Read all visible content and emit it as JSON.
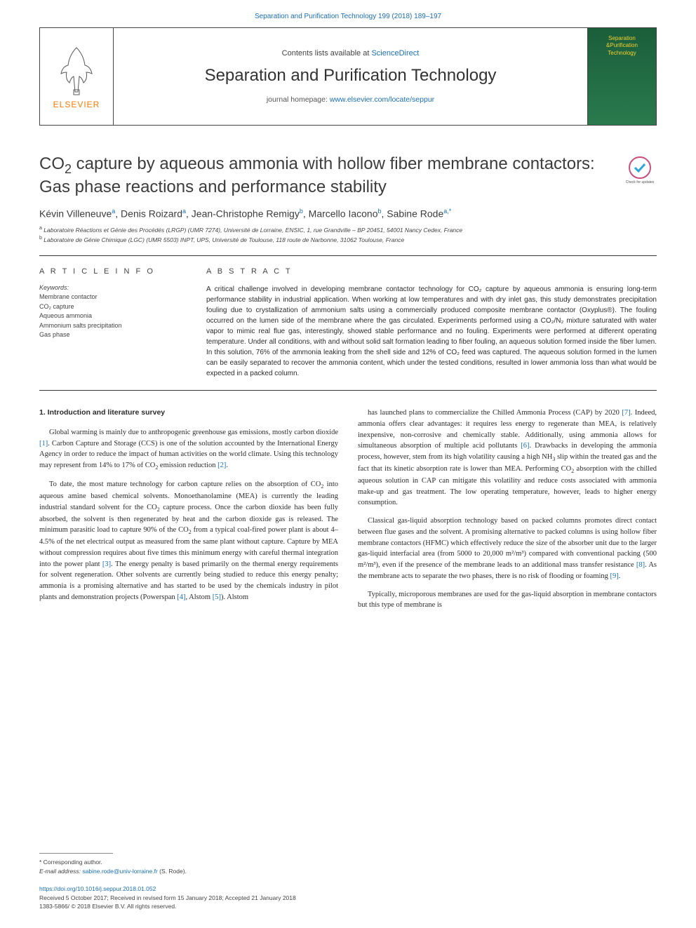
{
  "colors": {
    "link": "#1a6fb5",
    "text": "#2c2c2c",
    "elsevier_orange": "#ff7a00",
    "cover_bg_top": "#1a5e3a",
    "cover_bg_bot": "#2a7a4e",
    "cover_text": "#f5d030",
    "rule": "#333333"
  },
  "toplink": "Separation and Purification Technology 199 (2018) 189–197",
  "header": {
    "elsevier": "ELSEVIER",
    "contents_prefix": "Contents lists available at ",
    "contents_link": "ScienceDirect",
    "journal_name": "Separation and Purification Technology",
    "homepage_prefix": "journal homepage: ",
    "homepage_link": "www.elsevier.com/locate/seppur",
    "cover_lines": [
      "Separation",
      "&Purification",
      "Technology"
    ]
  },
  "article": {
    "title_html": "CO<sub>2</sub> capture by aqueous ammonia with hollow fiber membrane contactors: Gas phase reactions and performance stability",
    "check_label": "Check for updates",
    "authors_html": "Kévin Villeneuve<sup>a</sup>, Denis Roizard<sup>a</sup>, Jean-Christophe Remigy<sup>b</sup>, Marcello Iacono<sup>b</sup>, Sabine Rode<sup>a,*</sup>",
    "affiliations": [
      "a|Laboratoire Réactions et Génie des Procédés (LRGP) (UMR 7274), Université de Lorraine, ENSIC, 1, rue Grandville – BP 20451, 54001 Nancy Cedex, France",
      "b|Laboratoire de Génie Chimique (LGC) (UMR 5503) INPT, UPS, Université de Toulouse, 118 route de Narbonne, 31062 Toulouse, France"
    ]
  },
  "info": {
    "head": "A R T I C L E  I N F O",
    "kw_head": "Keywords:",
    "keywords": [
      "Membrane contactor",
      "CO₂ capture",
      "Aqueous ammonia",
      "Ammonium salts precipitation",
      "Gas phase"
    ]
  },
  "abstract": {
    "head": "A B S T R A C T",
    "text": "A critical challenge involved in developing membrane contactor technology for CO₂ capture by aqueous ammonia is ensuring long-term performance stability in industrial application. When working at low temperatures and with dry inlet gas, this study demonstrates precipitation fouling due to crystallization of ammonium salts using a commercially produced composite membrane contactor (Oxyplus®). The fouling occurred on the lumen side of the membrane where the gas circulated. Experiments performed using a CO₂/N₂ mixture saturated with water vapor to mimic real flue gas, interestingly, showed stable performance and no fouling. Experiments were performed at different operating temperature. Under all conditions, with and without solid salt formation leading to fiber fouling, an aqueous solution formed inside the fiber lumen. In this solution, 76% of the ammonia leaking from the shell side and 12% of CO₂ feed was captured. The aqueous solution formed in the lumen can be easily separated to recover the ammonia content, which under the tested conditions, resulted in lower ammonia loss than what would be expected in a packed column."
  },
  "body": {
    "section_head": "1. Introduction and literature survey",
    "left_paras": [
      "Global warming is mainly due to anthropogenic greenhouse gas emissions, mostly carbon dioxide <span class=\"ref\">[1]</span>. Carbon Capture and Storage (CCS) is one of the solution accounted by the International Energy Agency in order to reduce the impact of human activities on the world climate. Using this technology may represent from 14% to 17% of CO<sub>2</sub> emission reduction <span class=\"ref\">[2]</span>.",
      "To date, the most mature technology for carbon capture relies on the absorption of CO<sub>2</sub> into aqueous amine based chemical solvents. Monoethanolamine (MEA) is currently the leading industrial standard solvent for the CO<sub>2</sub> capture process. Once the carbon dioxide has been fully absorbed, the solvent is then regenerated by heat and the carbon dioxide gas is released. The minimum parasitic load to capture 90% of the CO<sub>2</sub> from a typical coal-fired power plant is about 4–4.5% of the net electrical output as measured from the same plant without capture. Capture by MEA without compression requires about five times this minimum energy with careful thermal integration into the power plant <span class=\"ref\">[3]</span>. The energy penalty is based primarily on the thermal energy requirements for solvent regeneration. Other solvents are currently being studied to reduce this energy penalty; ammonia is a promising alternative and has started to be used by the chemicals industry in pilot plants and demonstration projects (Powerspan <span class=\"ref\">[4]</span>, Alstom <span class=\"ref\">[5]</span>). Alstom"
    ],
    "right_paras": [
      "has launched plans to commercialize the Chilled Ammonia Process (CAP) by 2020 <span class=\"ref\">[7]</span>. Indeed, ammonia offers clear advantages: it requires less energy to regenerate than MEA, is relatively inexpensive, non-corrosive and chemically stable. Additionally, using ammonia allows for simultaneous absorption of multiple acid pollutants <span class=\"ref\">[6]</span>. Drawbacks in developing the ammonia process, however, stem from its high volatility causing a high NH<sub>3</sub> slip within the treated gas and the fact that its kinetic absorption rate is lower than MEA. Performing CO<sub>2</sub> absorption with the chilled aqueous solution in CAP can mitigate this volatility and reduce costs associated with ammonia make-up and gas treatment. The low operating temperature, however, leads to higher energy consumption.",
      "Classical gas-liquid absorption technology based on packed columns promotes direct contact between flue gases and the solvent. A promising alternative to packed columns is using hollow fiber membrane contactors (HFMC) which effectively reduce the size of the absorber unit due to the larger gas-liquid interfacial area (from 5000 to 20,000 m²/m³) compared with conventional packing (500 m²/m³), even if the presence of the membrane leads to an additional mass transfer resistance <span class=\"ref\">[8]</span>. As the membrane acts to separate the two phases, there is no risk of flooding or foaming <span class=\"ref\">[9]</span>.",
      "Typically, microporous membranes are used for the gas-liquid absorption in membrane contactors but this type of membrane is"
    ]
  },
  "footer": {
    "corr": "* Corresponding author.",
    "email_label": "E-mail address: ",
    "email": "sabine.rode@univ-lorraine.fr",
    "email_who": " (S. Rode).",
    "doi": "https://doi.org/10.1016/j.seppur.2018.01.052",
    "received": "Received 5 October 2017; Received in revised form 15 January 2018; Accepted 21 January 2018",
    "copyright": "1383-5866/ © 2018 Elsevier B.V. All rights reserved."
  }
}
